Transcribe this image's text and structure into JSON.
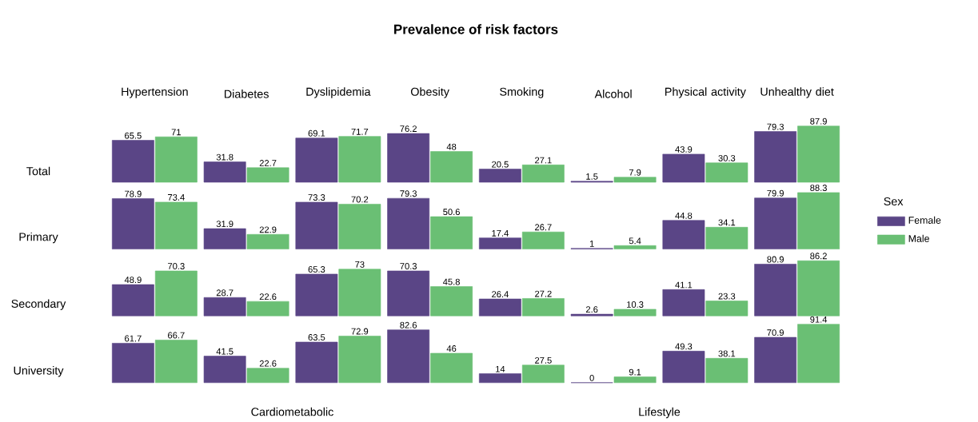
{
  "chart_data": [
    {
      "type": "bar",
      "title": "Prevalence of risk factors",
      "ylabel": "Total",
      "categories": [
        "Hypertension",
        "Diabetes",
        "Dyslipidemia",
        "Obesity",
        "Smoking",
        "Alcohol",
        "Physical activity",
        "Unhealthy diet"
      ],
      "series": [
        {
          "color": "#5a4586",
          "values": [
            65.5,
            31.8,
            69.1,
            76.2,
            20.5,
            1.5,
            43.9,
            79.3
          ]
        },
        {
          "color": "#6abf74",
          "values": [
            71,
            22.7,
            71.7,
            48,
            27.1,
            7.9,
            30.3,
            87.9
          ]
        }
      ],
      "data_labels": true,
      "tick_labels": "x"
    },
    {
      "type": "bar",
      "ylabel": "Primary",
      "categories": [
        null,
        null,
        null,
        null,
        null,
        null,
        null,
        null
      ],
      "series": [
        {
          "name": "Female",
          "color": "#5a4586",
          "values": [
            78.9,
            31.9,
            73.3,
            79.3,
            17.4,
            1,
            44.8,
            79.9
          ]
        },
        {
          "name": "Male",
          "color": "#6abf74",
          "values": [
            73.4,
            22.9,
            70.2,
            50.6,
            26.7,
            5.4,
            34.1,
            88.3
          ]
        }
      ],
      "data_labels": true,
      "tick_labels": false,
      "legend": "right",
      "legend_title": "Sex"
    },
    {
      "type": "bar",
      "ylabel": "Secondary",
      "categories": [
        null,
        null,
        null,
        null,
        null,
        null,
        null,
        null
      ],
      "series": [
        {
          "color": "#5a4586",
          "values": [
            48.9,
            28.7,
            65.3,
            70.3,
            26.4,
            2.6,
            41.1,
            80.9
          ]
        },
        {
          "color": "#6abf74",
          "values": [
            70.3,
            22.6,
            73,
            45.8,
            27.2,
            10.3,
            23.3,
            86.2
          ]
        }
      ],
      "data_labels": true,
      "tick_labels": false
    },
    {
      "type": "bar",
      "ylabel": "University",
      "categories": [
        null,
        null,
        null,
        null,
        null,
        null,
        null,
        null
      ],
      "series": [
        {
          "color": "#5a4586",
          "values": [
            61.7,
            41.5,
            63.5,
            82.6,
            14,
            0,
            49.3,
            70.9
          ]
        },
        {
          "color": "#6abf74",
          "values": [
            66.7,
            22.6,
            72.9,
            46,
            27.5,
            9.1,
            38.1,
            91.4
          ]
        }
      ],
      "data_labels": true,
      "tick_labels": false,
      "annotations": [
        "Cardiometabolic",
        "Lifestyle"
      ]
    }
  ]
}
